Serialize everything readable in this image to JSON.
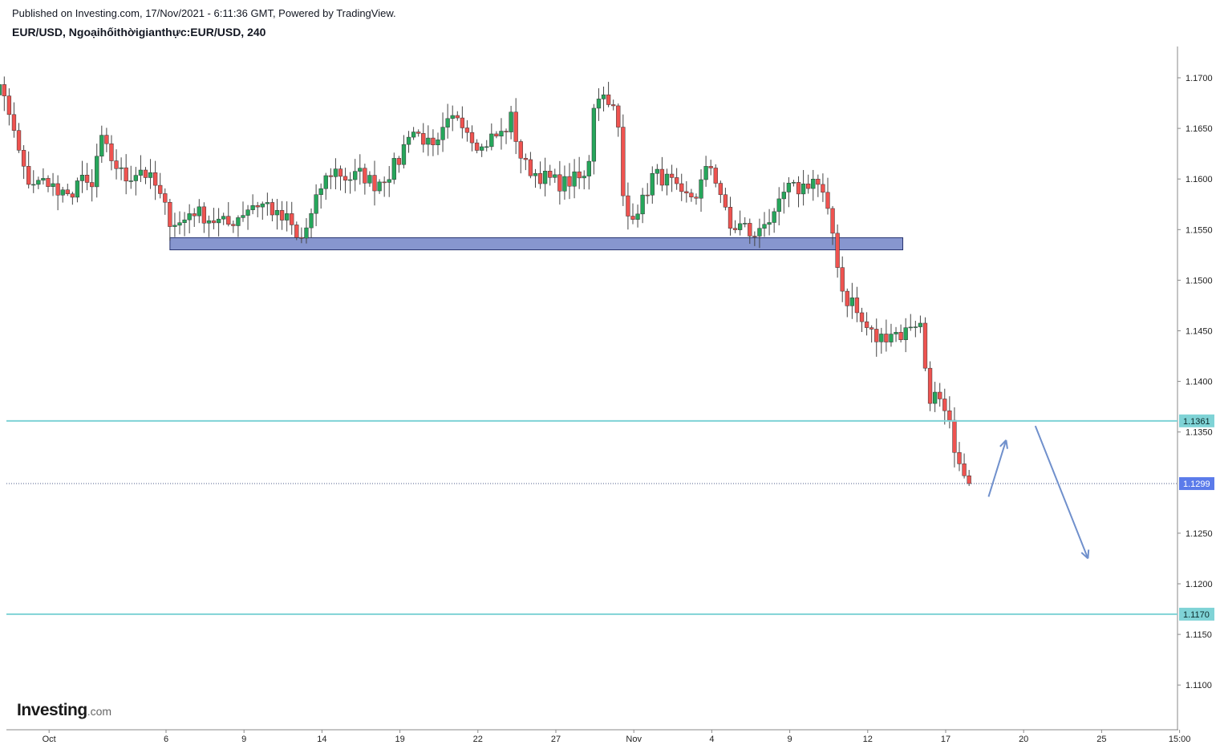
{
  "header": {
    "published": "Published on Investing.com, 17/Nov/2021 - 6:11:36 GMT, Powered by TradingView.",
    "title": "EUR/USD, Ngoạihốithờigianthực:EUR/USD, 240"
  },
  "logo": {
    "main": "Investing",
    "tld": ".com"
  },
  "colors": {
    "up": "#26a65b",
    "down": "#ef5350",
    "wick": "#444444",
    "support_zone_fill": "#8796cf",
    "support_zone_border": "#26326e",
    "level_line": "#7fd3d6",
    "last_price": "#5b7bea",
    "arrow": "#7090cc",
    "axis": "#8a8a8a"
  },
  "chart_data": {
    "type": "candlestick",
    "symbol": "EUR/USD",
    "timeframe": "240",
    "x_range": [
      -10.4,
      48.4
    ],
    "ylim": [
      1.1045,
      1.1735
    ],
    "y_ticks": [
      "1.1700",
      "1.1650",
      "1.1600",
      "1.1550",
      "1.1500",
      "1.1450",
      "1.1400",
      "1.1350",
      "1.1250",
      "1.1200",
      "1.1150",
      "1.1100"
    ],
    "x_ticks": [
      {
        "label": "Oct",
        "x": -6
      },
      {
        "label": "6",
        "x": 0
      },
      {
        "label": "9",
        "x": 4
      },
      {
        "label": "14",
        "x": 8
      },
      {
        "label": "19",
        "x": 12
      },
      {
        "label": "22",
        "x": 16
      },
      {
        "label": "27",
        "x": 20
      },
      {
        "label": "Nov",
        "x": 24
      },
      {
        "label": "4",
        "x": 28
      },
      {
        "label": "9",
        "x": 32
      },
      {
        "label": "12",
        "x": 36
      },
      {
        "label": "17",
        "x": 40
      },
      {
        "label": "20",
        "x": 44
      },
      {
        "label": "25",
        "x": 48
      },
      {
        "label": "15:00",
        "x": 52
      }
    ],
    "waypoints": [
      [
        -10.3,
        1.17
      ],
      [
        -9.2,
        1.168
      ],
      [
        -8.5,
        1.169
      ],
      [
        -8.0,
        1.166
      ],
      [
        -7.6,
        1.163
      ],
      [
        -7.2,
        1.16
      ],
      [
        -6.6,
        1.1595
      ],
      [
        -6.0,
        1.16
      ],
      [
        -5.6,
        1.1585
      ],
      [
        -5.0,
        1.158
      ],
      [
        -4.5,
        1.16
      ],
      [
        -3.8,
        1.159
      ],
      [
        -3.4,
        1.164
      ],
      [
        -2.8,
        1.162
      ],
      [
        -2.1,
        1.16
      ],
      [
        -1.3,
        1.161
      ],
      [
        -0.6,
        1.1595
      ],
      [
        0.2,
        1.156
      ],
      [
        0.8,
        1.1555
      ],
      [
        1.3,
        1.157
      ],
      [
        2.3,
        1.156
      ],
      [
        3.2,
        1.1555
      ],
      [
        4.4,
        1.1575
      ],
      [
        5.2,
        1.1575
      ],
      [
        5.8,
        1.156
      ],
      [
        6.3,
        1.156
      ],
      [
        6.8,
        1.1535
      ],
      [
        7.4,
        1.156
      ],
      [
        8.0,
        1.1595
      ],
      [
        8.6,
        1.161
      ],
      [
        9.3,
        1.16
      ],
      [
        10.0,
        1.1605
      ],
      [
        10.7,
        1.1595
      ],
      [
        11.4,
        1.1605
      ],
      [
        12.0,
        1.162
      ],
      [
        12.5,
        1.165
      ],
      [
        13.2,
        1.164
      ],
      [
        13.8,
        1.1625
      ],
      [
        14.3,
        1.165
      ],
      [
        15.0,
        1.1665
      ],
      [
        15.6,
        1.1645
      ],
      [
        16.2,
        1.163
      ],
      [
        16.6,
        1.164
      ],
      [
        17.3,
        1.1645
      ],
      [
        17.7,
        1.166
      ],
      [
        18.3,
        1.1615
      ],
      [
        19.0,
        1.1605
      ],
      [
        19.6,
        1.16
      ],
      [
        20.3,
        1.1595
      ],
      [
        21.0,
        1.16
      ],
      [
        21.6,
        1.16
      ],
      [
        22.0,
        1.1685
      ],
      [
        22.8,
        1.168
      ],
      [
        23.3,
        1.164
      ],
      [
        23.5,
        1.156
      ],
      [
        24.4,
        1.1575
      ],
      [
        25.0,
        1.1605
      ],
      [
        25.6,
        1.16
      ],
      [
        26.0,
        1.1595
      ],
      [
        26.4,
        1.158
      ],
      [
        27.2,
        1.1585
      ],
      [
        27.9,
        1.1615
      ],
      [
        28.4,
        1.159
      ],
      [
        28.9,
        1.155
      ],
      [
        29.6,
        1.1555
      ],
      [
        30.2,
        1.154
      ],
      [
        30.6,
        1.156
      ],
      [
        31.2,
        1.156
      ],
      [
        31.8,
        1.159
      ],
      [
        32.5,
        1.159
      ],
      [
        33.2,
        1.16
      ],
      [
        33.6,
        1.159
      ],
      [
        34.0,
        1.156
      ],
      [
        34.3,
        1.154
      ],
      [
        34.5,
        1.151
      ],
      [
        34.8,
        1.148
      ],
      [
        35.2,
        1.148
      ],
      [
        35.6,
        1.146
      ],
      [
        36.1,
        1.145
      ],
      [
        36.5,
        1.144
      ],
      [
        37.2,
        1.145
      ],
      [
        37.8,
        1.1445
      ],
      [
        38.3,
        1.146
      ],
      [
        38.7,
        1.1455
      ],
      [
        38.9,
        1.142
      ],
      [
        39.2,
        1.1385
      ],
      [
        39.6,
        1.1385
      ],
      [
        39.8,
        1.137
      ],
      [
        40.2,
        1.1355
      ],
      [
        40.6,
        1.131
      ],
      [
        41.0,
        1.1315
      ],
      [
        41.1,
        1.128
      ],
      [
        41.3,
        1.129
      ]
    ],
    "support_zone": {
      "x_start": 0.2,
      "x_end": 37.8,
      "low": 1.153,
      "high": 1.1542
    },
    "horizontal_levels": [
      {
        "value": 1.1361,
        "label": "1.1361"
      },
      {
        "value": 1.117,
        "label": "1.1170"
      }
    ],
    "last_price": {
      "value": 1.1299,
      "label": "1.1299"
    },
    "arrows": [
      {
        "from": [
          42.2,
          1.1286
        ],
        "to": [
          43.1,
          1.1342
        ]
      },
      {
        "from": [
          44.6,
          1.1356
        ],
        "to": [
          47.3,
          1.1225
        ]
      }
    ]
  }
}
